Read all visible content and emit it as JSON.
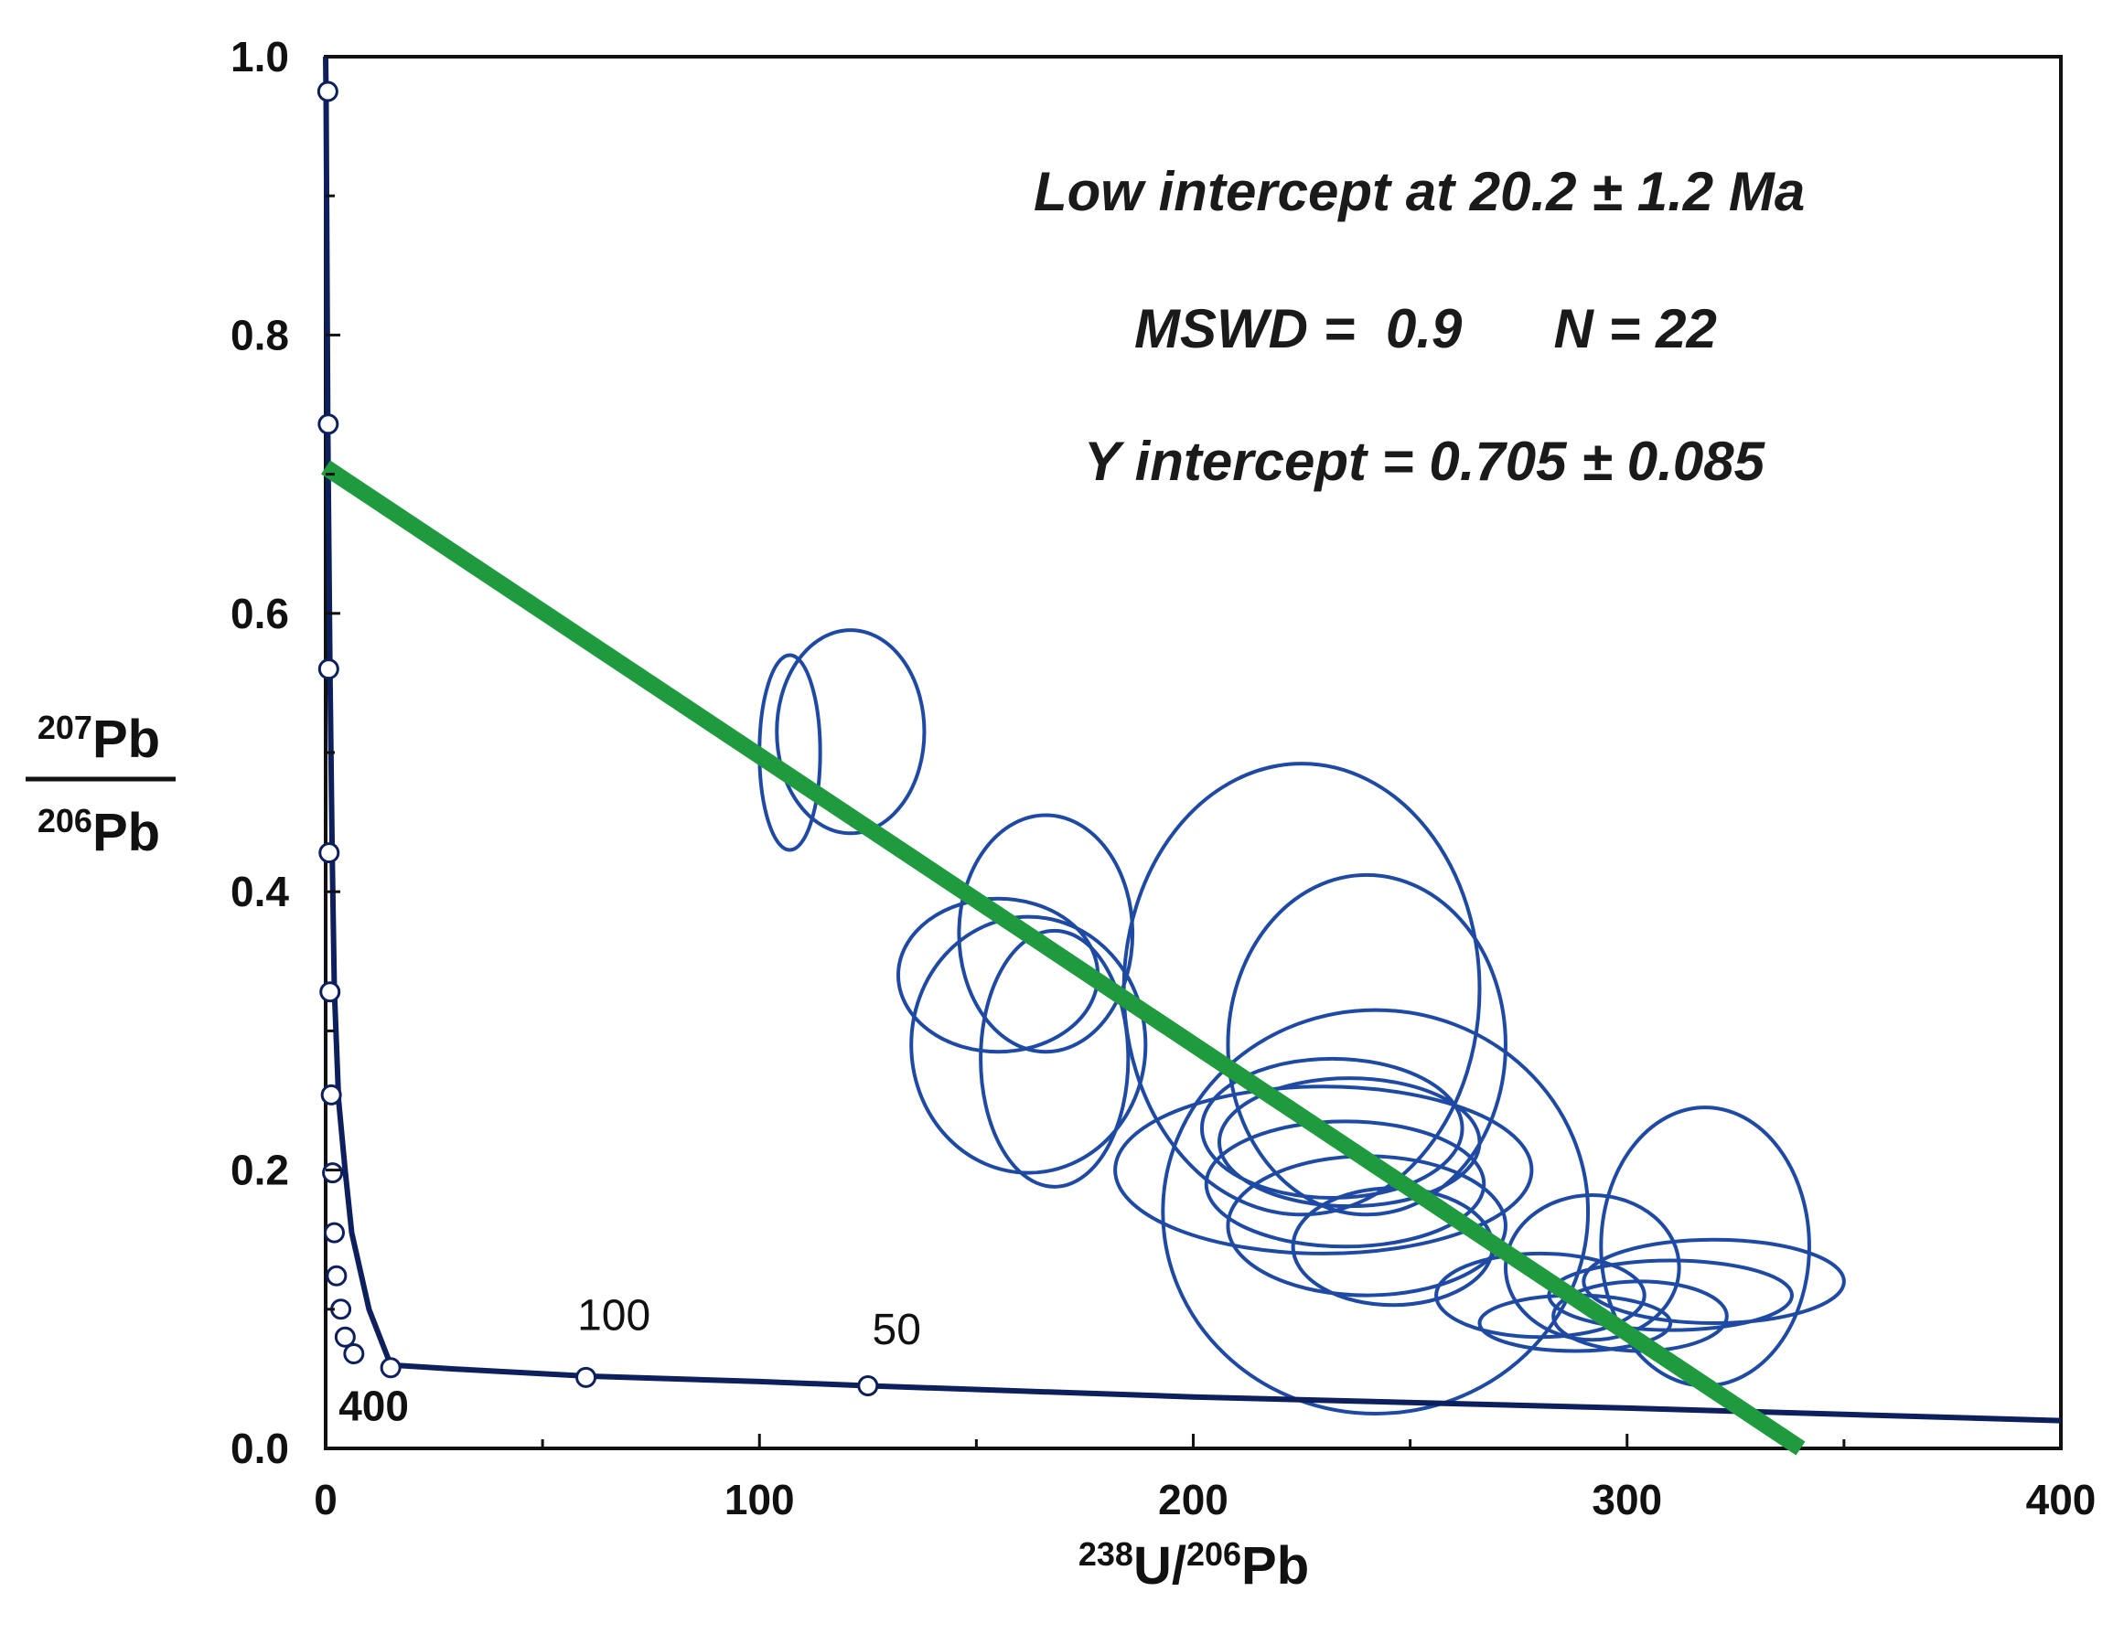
{
  "chart_data": {
    "type": "scatter",
    "subtype": "Tera-Wasserburg concordia with error ellipses",
    "xlabel": {
      "sup1": "238",
      "t1": "U/",
      "sup2": "206",
      "t2": "Pb"
    },
    "ylabel": {
      "numerator": {
        "sup": "207",
        "t": "Pb"
      },
      "denominator": {
        "sup": "206",
        "t": "Pb"
      }
    },
    "xlim": [
      0,
      400
    ],
    "ylim": [
      0.0,
      1.0
    ],
    "x_ticks": [
      "0",
      "100",
      "200",
      "300",
      "400"
    ],
    "y_ticks": [
      "0.0",
      "0.2",
      "0.4",
      "0.6",
      "0.8",
      "1.0"
    ],
    "annotations": [
      "Low intercept at  20.2 ± 1.2 Ma",
      "MSWD =  0.9      N = 22",
      "Y intercept  = 0.705 ± 0.085"
    ],
    "colors": {
      "concordia": "#0d1f5c",
      "ellipse": "#1f4aa3",
      "regression": "#1f9a3f",
      "axis": "#111111"
    },
    "regression_line": {
      "x": [
        0,
        340
      ],
      "y": [
        0.705,
        0.0
      ]
    },
    "concordia": {
      "x": [
        0,
        0.1,
        0.5,
        1,
        1.5,
        2,
        3,
        4.5,
        6,
        10,
        15,
        30,
        60,
        100,
        125,
        200,
        300,
        400
      ],
      "y": [
        1.0,
        0.97,
        0.73,
        0.56,
        0.43,
        0.33,
        0.25,
        0.2,
        0.155,
        0.1,
        0.06,
        0.057,
        0.052,
        0.048,
        0.045,
        0.037,
        0.029,
        0.02
      ]
    },
    "concordia_markers": {
      "x": [
        0.5,
        0.6,
        0.7,
        0.8,
        1.0,
        1.3,
        1.6,
        2.0,
        2.5,
        3.5,
        4.5,
        6.5,
        15,
        60,
        125
      ],
      "y": [
        0.975,
        0.736,
        0.56,
        0.428,
        0.328,
        0.254,
        0.198,
        0.155,
        0.124,
        0.1,
        0.08,
        0.068,
        0.058,
        0.051,
        0.045
      ]
    },
    "age_labels": [
      {
        "text": "400",
        "x": 3,
        "y": 0.02,
        "bold": true
      },
      {
        "text": "100",
        "x": 58,
        "y": 0.085,
        "bold": false
      },
      {
        "text": "50",
        "x": 126,
        "y": 0.075,
        "bold": false
      }
    ],
    "ellipses": [
      {
        "cx": 107,
        "cy": 0.5,
        "rx": 7,
        "ry": 0.07
      },
      {
        "cx": 121,
        "cy": 0.515,
        "rx": 17,
        "ry": 0.073
      },
      {
        "cx": 166,
        "cy": 0.37,
        "rx": 20,
        "ry": 0.085
      },
      {
        "cx": 155,
        "cy": 0.34,
        "rx": 23,
        "ry": 0.055
      },
      {
        "cx": 168,
        "cy": 0.28,
        "rx": 17,
        "ry": 0.092
      },
      {
        "cx": 162,
        "cy": 0.29,
        "rx": 27,
        "ry": 0.092
      },
      {
        "cx": 225,
        "cy": 0.33,
        "rx": 41,
        "ry": 0.162
      },
      {
        "cx": 240,
        "cy": 0.29,
        "rx": 32,
        "ry": 0.122
      },
      {
        "cx": 230,
        "cy": 0.2,
        "rx": 48,
        "ry": 0.06
      },
      {
        "cx": 242,
        "cy": 0.17,
        "rx": 49,
        "ry": 0.145
      },
      {
        "cx": 232,
        "cy": 0.23,
        "rx": 30,
        "ry": 0.05
      },
      {
        "cx": 236,
        "cy": 0.22,
        "rx": 30,
        "ry": 0.046
      },
      {
        "cx": 240,
        "cy": 0.16,
        "rx": 32,
        "ry": 0.05
      },
      {
        "cx": 235,
        "cy": 0.19,
        "rx": 32,
        "ry": 0.045
      },
      {
        "cx": 246,
        "cy": 0.145,
        "rx": 23,
        "ry": 0.042
      },
      {
        "cx": 280,
        "cy": 0.11,
        "rx": 24,
        "ry": 0.03
      },
      {
        "cx": 292,
        "cy": 0.13,
        "rx": 20,
        "ry": 0.052
      },
      {
        "cx": 288,
        "cy": 0.09,
        "rx": 22,
        "ry": 0.02
      },
      {
        "cx": 303,
        "cy": 0.095,
        "rx": 20,
        "ry": 0.025
      },
      {
        "cx": 318,
        "cy": 0.145,
        "rx": 24,
        "ry": 0.1
      },
      {
        "cx": 320,
        "cy": 0.12,
        "rx": 30,
        "ry": 0.03
      },
      {
        "cx": 310,
        "cy": 0.11,
        "rx": 28,
        "ry": 0.025
      }
    ]
  }
}
